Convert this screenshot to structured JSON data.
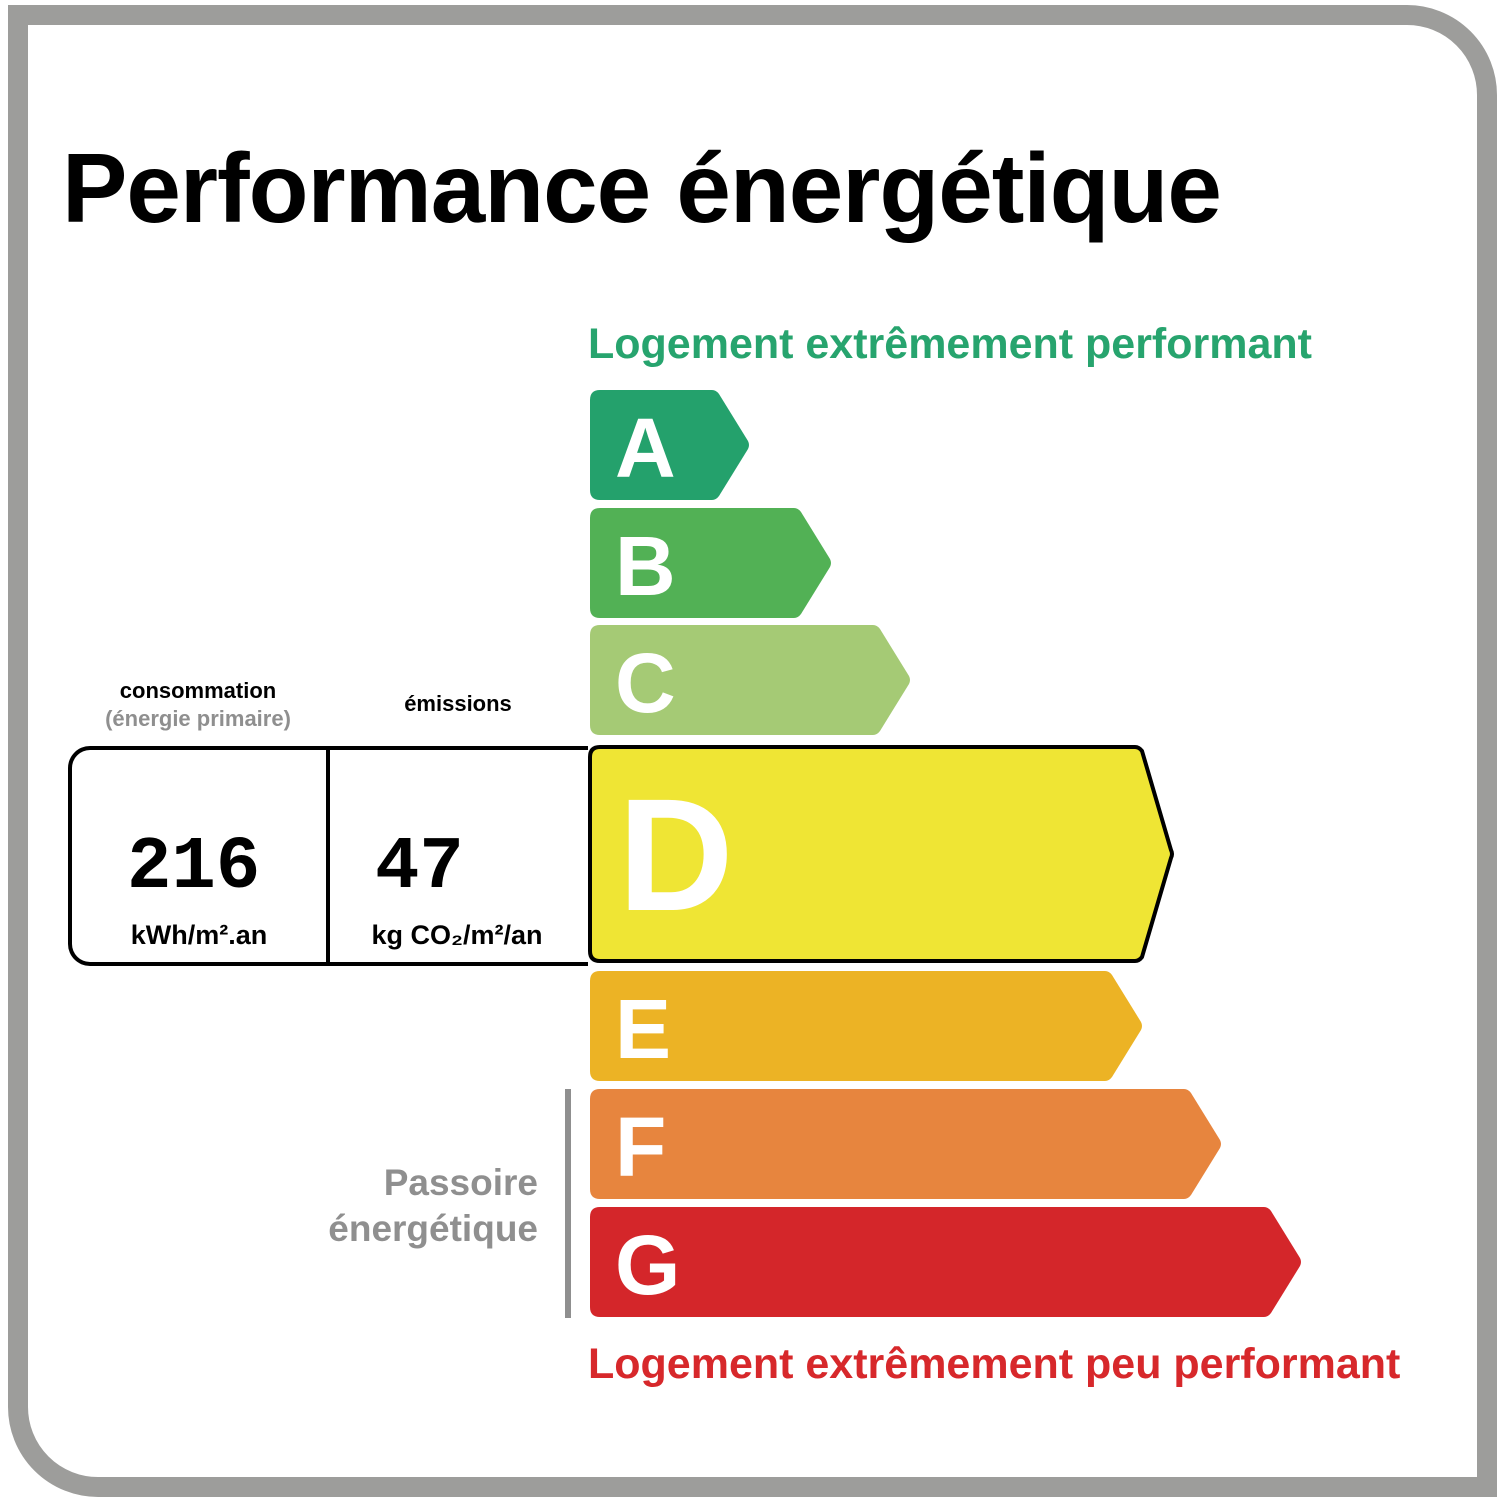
{
  "title": "Performance énergétique",
  "top_label": "Logement extrêmement performant",
  "bottom_label": "Logement extrêmement peu performant",
  "classes": [
    {
      "letter": "A",
      "color": "#24a16c"
    },
    {
      "letter": "B",
      "color": "#52b155"
    },
    {
      "letter": "C",
      "color": "#a5ca75"
    },
    {
      "letter": "D",
      "color": "#efe534"
    },
    {
      "letter": "E",
      "color": "#ecb325"
    },
    {
      "letter": "F",
      "color": "#e7853e"
    },
    {
      "letter": "G",
      "color": "#d4262a"
    }
  ],
  "current_class": "D",
  "consumption": {
    "header": "consommation",
    "subheader": "(énergie primaire)",
    "value": "216",
    "unit": "kWh/m².an"
  },
  "emissions": {
    "header": "émissions",
    "value": "47",
    "unit": "kg CO₂/m²/an"
  },
  "passoire": {
    "line1": "Passoire",
    "line2": "énergétique"
  },
  "colors": {
    "frame": "#9d9d9b",
    "good": "#27a46e",
    "bad": "#d7282b",
    "muted": "#8f8f8f"
  }
}
